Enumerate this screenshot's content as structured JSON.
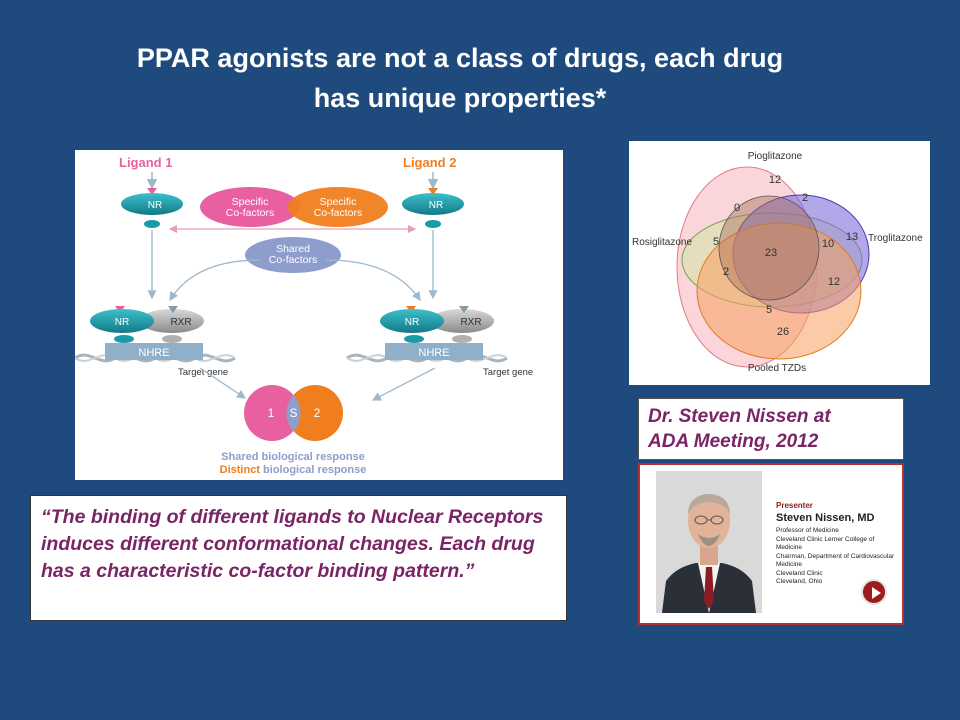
{
  "slide": {
    "title_line1": "PPAR agonists are not a class of drugs, each drug",
    "title_line2": "has unique properties*"
  },
  "mechanism": {
    "ligand1": "Ligand 1",
    "ligand2": "Ligand 2",
    "nr": "NR",
    "rxr": "RXR",
    "nhre": "NHRE",
    "specific_cofactors_line1": "Specific",
    "specific_cofactors_line2": "Co-factors",
    "shared_cofactors_line1": "Shared",
    "shared_cofactors_line2": "Co-factors",
    "target_gene": "Target gene",
    "response_left": "1",
    "response_shared": "S",
    "response_right": "2",
    "shared_response": "Shared biological response",
    "distinct_word": "Distinct",
    "distinct_rest": "biological response",
    "colors": {
      "ligand1": "#e8609f",
      "ligand2": "#f07e1f",
      "nr": "#1a99a6",
      "shared": "#8f9dcc"
    }
  },
  "venn": {
    "labels": {
      "top": "Pioglitazone",
      "left": "Rosiglitazone",
      "right": "Troglitazone",
      "bottom": "Pooled TZDs"
    },
    "counts": {
      "pio_only": "12",
      "pio_rosi": "0",
      "pio_tro": "2",
      "rosi_only": "5",
      "center": "23",
      "tro_pio_pooled": "10",
      "tro_only": "13",
      "rosi_pooled": "2",
      "tro_pooled": "12",
      "rosi_tro_pooled": "5",
      "pooled_only": "26"
    }
  },
  "speaker": {
    "caption_line1": "Dr. Steven Nissen at",
    "caption_line2": "ADA Meeting, 2012",
    "presenter_label": "Presenter",
    "name": "Steven Nissen, MD",
    "line1": "Professor of Medicine",
    "line2": "Cleveland Clinic Lerner College of Medicine",
    "line3": "Chairman, Department of Cardiovascular",
    "line4": "Medicine",
    "line5": "Cleveland Clinic",
    "line6": "Cleveland, Ohio"
  },
  "quote": {
    "text": "“The binding of different ligands to Nuclear Receptors induces different conformational changes.  Each drug has a characteristic co-factor binding pattern.”"
  }
}
